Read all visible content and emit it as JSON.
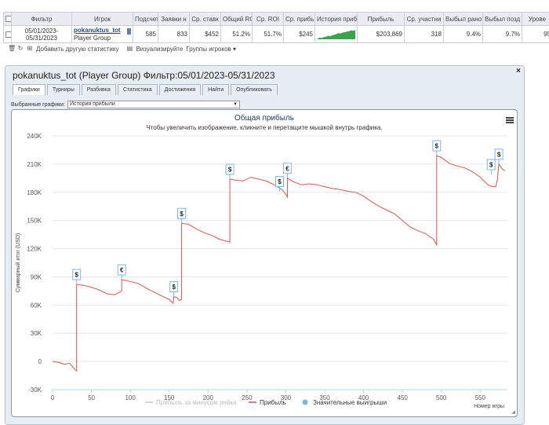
{
  "table": {
    "headers": [
      "Фильтр",
      "Игрок",
      "Подсчет",
      "Заявки н",
      "Ср. ставк",
      "Общий ROI",
      "Ср. ROI",
      "Ср. прибы",
      "История прибы",
      "Прибыль",
      "Ср. участни",
      "Выбыл рано",
      "Выбыл позд",
      "Урове"
    ],
    "row": {
      "filter_line1": "05/01/2023-",
      "filter_line2": "05/31/2023",
      "player_name": "pokanuktus_tot",
      "player_group": "Player Group",
      "count": "585",
      "entries": "833",
      "avg_stake": "$452",
      "total_roi": "51.2%",
      "avg_roi": "51.7%",
      "avg_profit": "$245",
      "profit": "$203,869",
      "avg_participants": "318",
      "early_out": "9.4%",
      "late_out": "9.7%",
      "level": "95"
    },
    "sparkline": [
      12,
      14,
      13,
      15,
      16,
      18,
      17,
      19,
      20,
      22,
      24,
      23,
      25,
      26,
      27,
      28,
      30,
      29,
      31
    ]
  },
  "toolbar": {
    "add_stats": "Добавить другую статистику",
    "visualize": "Визуализируйте",
    "player_groups": "Группы игроков"
  },
  "window": {
    "title": "pokanuktus_tot (Player Group) Фильтр:05/01/2023-05/31/2023",
    "close": "×",
    "tabs": [
      "Графики",
      "Турниры",
      "Разбивка",
      "Статистика",
      "Достижения",
      "Найти",
      "Опубликовать"
    ],
    "selector_label": "Выбранные графики:",
    "selector_value": "История прибыли"
  },
  "chart_data": {
    "type": "line",
    "title": "Общая прибыль",
    "subtitle": "Чтобы увеличить изображение, кликните и перетащите мышкой внутрь графика.",
    "xlabel": "Номер игры",
    "ylabel": "Суммарный итог (USD)",
    "xlim": [
      0,
      585
    ],
    "ylim": [
      -30000,
      240000
    ],
    "x_ticks": [
      0,
      50,
      100,
      150,
      200,
      250,
      300,
      350,
      400,
      450,
      500,
      550
    ],
    "y_ticks": [
      -30000,
      0,
      30000,
      60000,
      90000,
      120000,
      150000,
      180000,
      210000,
      240000
    ],
    "y_tick_labels": [
      "-30K",
      "0",
      "30K",
      "60K",
      "90K",
      "120K",
      "150K",
      "180K",
      "210K",
      "240K"
    ],
    "series": [
      {
        "name": "Прибыль",
        "color": "#d9534f",
        "points": [
          [
            0,
            0
          ],
          [
            8,
            -1000
          ],
          [
            15,
            -3000
          ],
          [
            22,
            -2000
          ],
          [
            28,
            -8000
          ],
          [
            31,
            -10000
          ],
          [
            31,
            82000
          ],
          [
            40,
            81000
          ],
          [
            50,
            79000
          ],
          [
            60,
            76000
          ],
          [
            70,
            72000
          ],
          [
            80,
            71000
          ],
          [
            89,
            75000
          ],
          [
            89,
            87000
          ],
          [
            95,
            86000
          ],
          [
            110,
            83000
          ],
          [
            125,
            76000
          ],
          [
            140,
            70000
          ],
          [
            150,
            66000
          ],
          [
            155,
            62000
          ],
          [
            156,
            69000
          ],
          [
            160,
            68000
          ],
          [
            163,
            65000
          ],
          [
            166,
            66000
          ],
          [
            166,
            147000
          ],
          [
            175,
            146000
          ],
          [
            185,
            141000
          ],
          [
            195,
            137000
          ],
          [
            205,
            134000
          ],
          [
            215,
            130000
          ],
          [
            228,
            127000
          ],
          [
            228,
            194000
          ],
          [
            235,
            193000
          ],
          [
            245,
            192000
          ],
          [
            255,
            196000
          ],
          [
            265,
            194000
          ],
          [
            275,
            192000
          ],
          [
            285,
            188000
          ],
          [
            295,
            183000
          ],
          [
            300,
            178000
          ],
          [
            302,
            175000
          ],
          [
            302,
            195000
          ],
          [
            310,
            191000
          ],
          [
            320,
            188000
          ],
          [
            330,
            189000
          ],
          [
            340,
            188000
          ],
          [
            350,
            186000
          ],
          [
            360,
            184000
          ],
          [
            370,
            183000
          ],
          [
            380,
            181000
          ],
          [
            390,
            180000
          ],
          [
            400,
            176000
          ],
          [
            410,
            170000
          ],
          [
            420,
            165000
          ],
          [
            430,
            161000
          ],
          [
            440,
            157000
          ],
          [
            450,
            150000
          ],
          [
            460,
            143000
          ],
          [
            470,
            139000
          ],
          [
            480,
            136000
          ],
          [
            490,
            130000
          ],
          [
            494,
            124000
          ],
          [
            494,
            219000
          ],
          [
            500,
            217000
          ],
          [
            510,
            211000
          ],
          [
            520,
            208000
          ],
          [
            530,
            206000
          ],
          [
            540,
            202000
          ],
          [
            550,
            196000
          ],
          [
            560,
            188000
          ],
          [
            565,
            186000
          ],
          [
            570,
            186000
          ],
          [
            572,
            193000
          ],
          [
            574,
            210000
          ],
          [
            578,
            205000
          ],
          [
            582,
            203000
          ]
        ]
      }
    ],
    "markers": [
      {
        "x": 31,
        "y": 82000,
        "label": "$"
      },
      {
        "x": 89,
        "y": 87000,
        "label": "€"
      },
      {
        "x": 156,
        "y": 69000,
        "label": "$"
      },
      {
        "x": 166,
        "y": 147000,
        "label": "$"
      },
      {
        "x": 228,
        "y": 194000,
        "label": "$"
      },
      {
        "x": 302,
        "y": 195000,
        "label": "€"
      },
      {
        "x": 292,
        "y": 181000,
        "label": "$"
      },
      {
        "x": 494,
        "y": 219000,
        "label": "$"
      },
      {
        "x": 574,
        "y": 210000,
        "label": "$"
      },
      {
        "x": 564,
        "y": 199000,
        "label": "$"
      }
    ],
    "legend": [
      {
        "label": "Прибыль за минусом рейка",
        "color": "#cccccc",
        "kind": "line"
      },
      {
        "label": "Прибыль",
        "color": "#d9534f",
        "kind": "line"
      },
      {
        "label": "Значительные выигрыши",
        "color": "#7cb5ec",
        "kind": "dot"
      }
    ],
    "grid": true,
    "legend_placement": "bottom"
  }
}
